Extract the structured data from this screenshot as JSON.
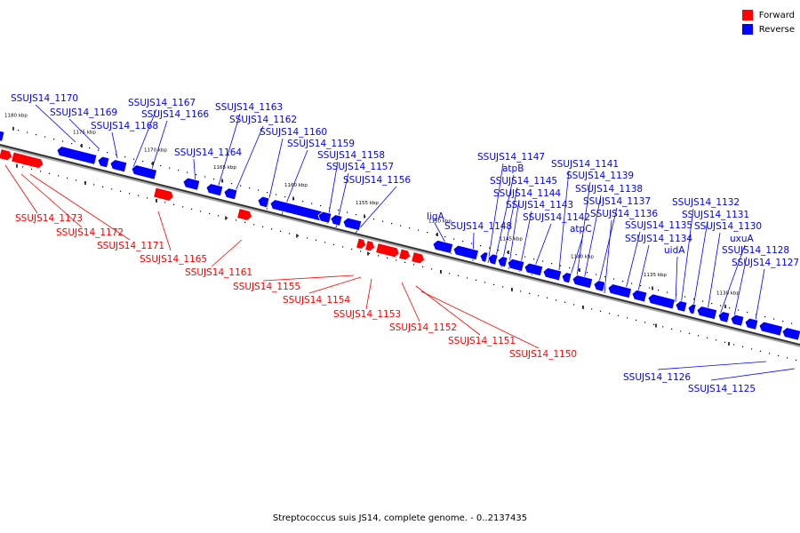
{
  "legend": {
    "forward_label": "Forward",
    "reverse_label": "Reverse",
    "forward_color": "#ff0000",
    "reverse_color": "#0000ff"
  },
  "caption": "Streptococcus suis JS14, complete genome. - 0..2137435",
  "ticks": [
    "1180 kbp",
    "1175 kbp",
    "1170 kbp",
    "1165 kbp",
    "1160 kbp",
    "1155 kbp",
    "1150 kbp",
    "1145 kbp",
    "1140 kbp",
    "1135 kbp",
    "1130 kbp"
  ],
  "reverse_genes": [
    "SSUJS14_1170",
    "SSUJS14_1169",
    "SSUJS14_1168",
    "SSUJS14_1167",
    "SSUJS14_1166",
    "SSUJS14_1164",
    "SSUJS14_1163",
    "SSUJS14_1162",
    "SSUJS14_1160",
    "SSUJS14_1159",
    "SSUJS14_1158",
    "SSUJS14_1157",
    "SSUJS14_1156",
    "ligA",
    "SSUJS14_1148",
    "SSUJS14_1147",
    "atpB",
    "SSUJS14_1145",
    "SSUJS14_1144",
    "SSUJS14_1143",
    "SSUJS14_1142",
    "atpC",
    "SSUJS14_1141",
    "SSUJS14_1139",
    "SSUJS14_1138",
    "SSUJS14_1137",
    "SSUJS14_1136",
    "SSUJS14_1135",
    "SSUJS14_1134",
    "uidA",
    "SSUJS14_1132",
    "SSUJS14_1131",
    "SSUJS14_1130",
    "uxuA",
    "SSUJS14_1128",
    "SSUJS14_1127",
    "SSUJS14_1126",
    "SSUJS14_1125"
  ],
  "forward_genes": [
    "SSUJS14_1173",
    "SSUJS14_1172",
    "SSUJS14_1171",
    "SSUJS14_1165",
    "SSUJS14_1161",
    "SSUJS14_1155",
    "SSUJS14_1154",
    "SSUJS14_1153",
    "SSUJS14_1152",
    "SSUJS14_1151",
    "SSUJS14_1150"
  ]
}
